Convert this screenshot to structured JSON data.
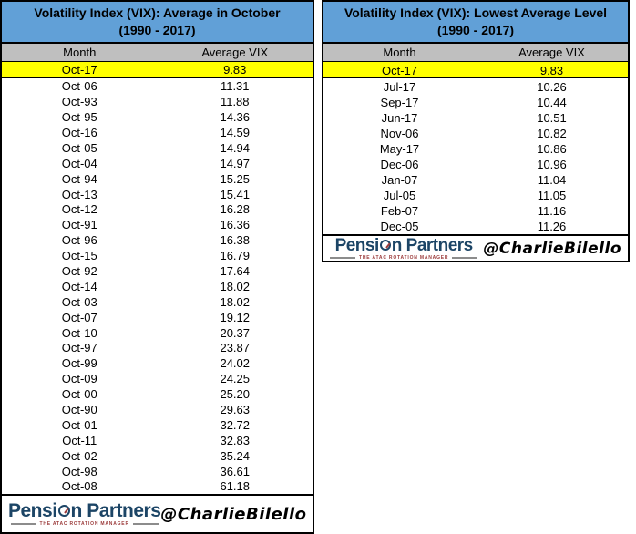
{
  "page": {
    "handle": "@CharlieBilello"
  },
  "logo": {
    "part1": "Pensi",
    "part2": "n Partners",
    "icon": "compass-gauge-icon",
    "tagline": "THE ATAC ROTATION MANAGER"
  },
  "colors": {
    "title_bg": "#61A0D7",
    "header_bg": "#BFBFBF",
    "highlight_bg": "#FFFF00",
    "border": "#000000",
    "logo_navy": "#1C4566",
    "tagline_red": "#9C3C3C"
  },
  "chart_data": [
    {
      "type": "table",
      "title": "Volatility Index (VIX): Average in October",
      "subtitle": "(1990 - 2017)",
      "columns": [
        "Month",
        "Average VIX"
      ],
      "highlight_index": 0,
      "highlighted_row": "Oct-17",
      "rows": [
        [
          "Oct-17",
          "9.83"
        ],
        [
          "Oct-06",
          "11.31"
        ],
        [
          "Oct-93",
          "11.88"
        ],
        [
          "Oct-95",
          "14.36"
        ],
        [
          "Oct-16",
          "14.59"
        ],
        [
          "Oct-05",
          "14.94"
        ],
        [
          "Oct-04",
          "14.97"
        ],
        [
          "Oct-94",
          "15.25"
        ],
        [
          "Oct-13",
          "15.41"
        ],
        [
          "Oct-12",
          "16.28"
        ],
        [
          "Oct-91",
          "16.36"
        ],
        [
          "Oct-96",
          "16.38"
        ],
        [
          "Oct-15",
          "16.79"
        ],
        [
          "Oct-92",
          "17.64"
        ],
        [
          "Oct-14",
          "18.02"
        ],
        [
          "Oct-03",
          "18.02"
        ],
        [
          "Oct-07",
          "19.12"
        ],
        [
          "Oct-10",
          "20.37"
        ],
        [
          "Oct-97",
          "23.87"
        ],
        [
          "Oct-99",
          "24.02"
        ],
        [
          "Oct-09",
          "24.25"
        ],
        [
          "Oct-00",
          "25.20"
        ],
        [
          "Oct-90",
          "29.63"
        ],
        [
          "Oct-01",
          "32.72"
        ],
        [
          "Oct-11",
          "32.83"
        ],
        [
          "Oct-02",
          "35.24"
        ],
        [
          "Oct-98",
          "36.61"
        ],
        [
          "Oct-08",
          "61.18"
        ]
      ]
    },
    {
      "type": "table",
      "title": "Volatility Index (VIX): Lowest Average Level",
      "subtitle": "(1990 - 2017)",
      "columns": [
        "Month",
        "Average VIX"
      ],
      "highlight_index": 0,
      "highlighted_row": "Oct-17",
      "rows": [
        [
          "Oct-17",
          "9.83"
        ],
        [
          "Jul-17",
          "10.26"
        ],
        [
          "Sep-17",
          "10.44"
        ],
        [
          "Jun-17",
          "10.51"
        ],
        [
          "Nov-06",
          "10.82"
        ],
        [
          "May-17",
          "10.86"
        ],
        [
          "Dec-06",
          "10.96"
        ],
        [
          "Jan-07",
          "11.04"
        ],
        [
          "Jul-05",
          "11.05"
        ],
        [
          "Feb-07",
          "11.16"
        ],
        [
          "Dec-05",
          "11.26"
        ]
      ]
    }
  ]
}
